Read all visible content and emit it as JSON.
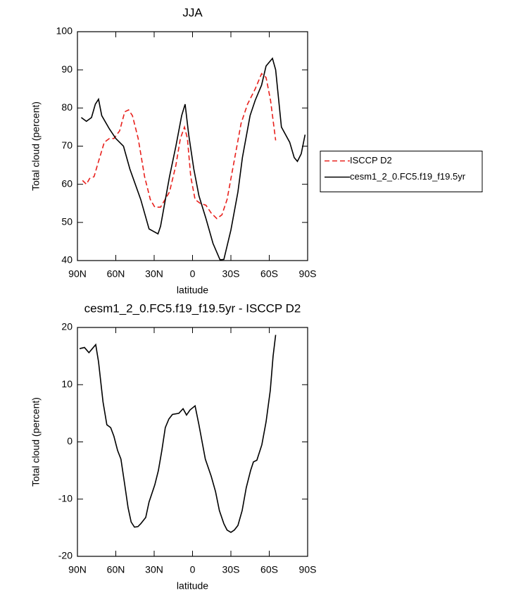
{
  "chart_data": [
    {
      "type": "line",
      "title": "JJA",
      "xlabel": "latitude",
      "ylabel": "Total cloud (percent)",
      "xlim": [
        90,
        -90
      ],
      "ylim": [
        40,
        100
      ],
      "xticks": [
        {
          "value": 90,
          "label": "90N"
        },
        {
          "value": 60,
          "label": "60N"
        },
        {
          "value": 30,
          "label": "30N"
        },
        0,
        {
          "value": -30,
          "label": "30S"
        },
        {
          "value": -60,
          "label": "60S"
        },
        {
          "value": -90,
          "label": "90S"
        }
      ],
      "yticks": [
        40,
        50,
        60,
        70,
        80,
        90,
        100
      ],
      "legend": "right",
      "series": [
        {
          "name": "ISCCP D2",
          "color": "#e8201c",
          "line_style": "dashed",
          "x": [
            86,
            83,
            80.5,
            77,
            73.5,
            69,
            65,
            61.5,
            57,
            53,
            50,
            47,
            42.5,
            37.5,
            33,
            29.5,
            25,
            18,
            13,
            9.5,
            6.3,
            4,
            1.4,
            -2,
            -6,
            -10.5,
            -14.5,
            -19,
            -23,
            -27,
            -32.5,
            -38,
            -43,
            -49,
            -54,
            -57.5,
            -61,
            -65
          ],
          "values": [
            61,
            60,
            61.5,
            62,
            66,
            71,
            72,
            72,
            74,
            79,
            79.5,
            78,
            72,
            62,
            56,
            54,
            54,
            58,
            65,
            72,
            75,
            72,
            62,
            56,
            55,
            54.5,
            52.5,
            51,
            52,
            56,
            66,
            76,
            81,
            85,
            89,
            88,
            82,
            71.5
          ]
        },
        {
          "name": "cesm1_2_0.FC5.f19_f19.5yr",
          "color": "#000000",
          "line_style": "solid",
          "x": [
            87,
            83,
            79,
            76,
            73.5,
            71,
            65,
            60,
            54,
            49,
            40.5,
            34,
            27,
            25,
            18,
            13,
            8.5,
            5.8,
            3,
            -1,
            -5,
            -10.5,
            -16,
            -21.5,
            -24.5,
            -30,
            -35.5,
            -39,
            -45,
            -49,
            -54,
            -57.5,
            -62.5,
            -65,
            -69.5,
            -76,
            -79.5,
            -82,
            -85,
            -88
          ],
          "values": [
            77.5,
            76.5,
            77.5,
            81,
            82.3,
            78,
            74.5,
            72,
            70,
            64,
            56,
            48.3,
            47,
            49,
            62,
            70,
            78,
            81,
            73,
            64,
            57,
            51,
            44.5,
            40.2,
            40.3,
            48,
            58,
            67,
            78,
            82,
            86,
            91,
            93,
            90,
            75,
            71,
            67,
            66,
            68,
            73
          ]
        }
      ]
    },
    {
      "type": "line",
      "title": "cesm1_2_0.FC5.f19_f19.5yr - ISCCP D2",
      "xlabel": "latitude",
      "ylabel": "Total cloud (percent)",
      "xlim": [
        90,
        -90
      ],
      "ylim": [
        -20,
        20
      ],
      "xticks": [
        {
          "value": 90,
          "label": "90N"
        },
        {
          "value": 60,
          "label": "60N"
        },
        {
          "value": 30,
          "label": "30N"
        },
        0,
        {
          "value": -30,
          "label": "30S"
        },
        {
          "value": -60,
          "label": "60S"
        },
        {
          "value": -90,
          "label": "90S"
        }
      ],
      "yticks": [
        -20,
        -10,
        0,
        10,
        20
      ],
      "color": "#000000",
      "x": [
        88.3,
        84.5,
        81,
        75.7,
        73.5,
        70,
        67,
        64,
        61.5,
        58.6,
        56,
        53,
        50.4,
        48,
        45.4,
        42.7,
        40.5,
        36.6,
        34,
        29.5,
        26.7,
        24,
        21.3,
        18.5,
        15.7,
        10.7,
        7.4,
        4.7,
        1.9,
        -2,
        -5,
        -10,
        -14.6,
        -18,
        -21,
        -24.5,
        -27,
        -30,
        -32.7,
        -35.5,
        -38.8,
        -42,
        -45.4,
        -47.6,
        -50.3,
        -54.2,
        -57.5,
        -60.8,
        -63,
        -65
      ],
      "values": [
        16.3,
        16.5,
        15.6,
        17,
        14,
        7,
        3,
        2.5,
        1,
        -1.5,
        -3,
        -7.5,
        -11.5,
        -14,
        -14.9,
        -14.8,
        -14.3,
        -13.2,
        -10.5,
        -7.5,
        -5,
        -1.5,
        2.5,
        4,
        4.8,
        5,
        5.8,
        4.7,
        5.6,
        6.3,
        3,
        -3,
        -6,
        -8.7,
        -12,
        -14.3,
        -15.4,
        -15.8,
        -15.4,
        -14.6,
        -12,
        -8,
        -5,
        -3.5,
        -3.2,
        -0.5,
        3.5,
        9,
        15,
        18.7
      ]
    }
  ]
}
